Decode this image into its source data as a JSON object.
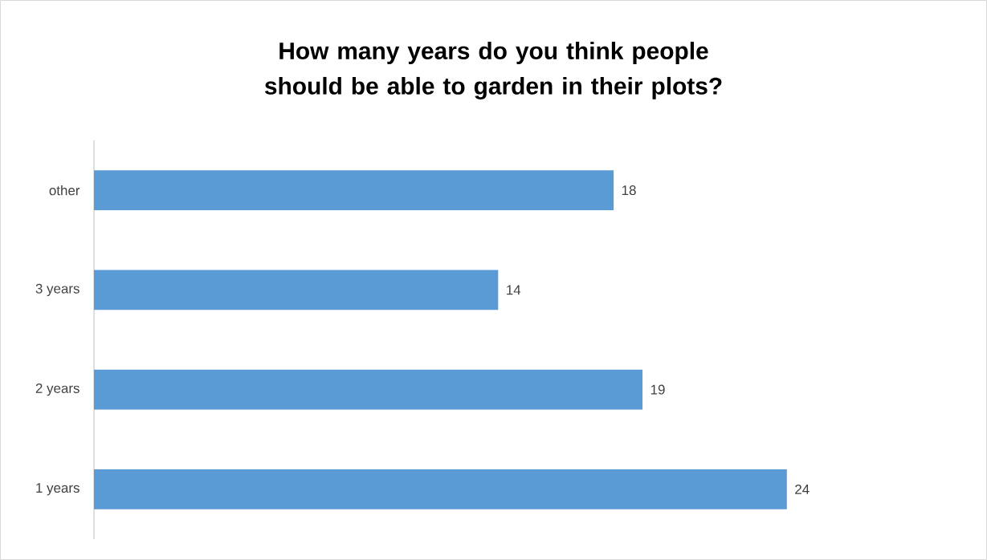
{
  "chart_data": {
    "type": "bar",
    "orientation": "horizontal",
    "title": "How many years do you think people should be able to garden in their plots?",
    "categories": [
      "other",
      "3 years",
      "2 years",
      "1 years"
    ],
    "values": [
      18,
      14,
      19,
      24
    ],
    "color": "#5b9bd5",
    "data_labels": true
  }
}
